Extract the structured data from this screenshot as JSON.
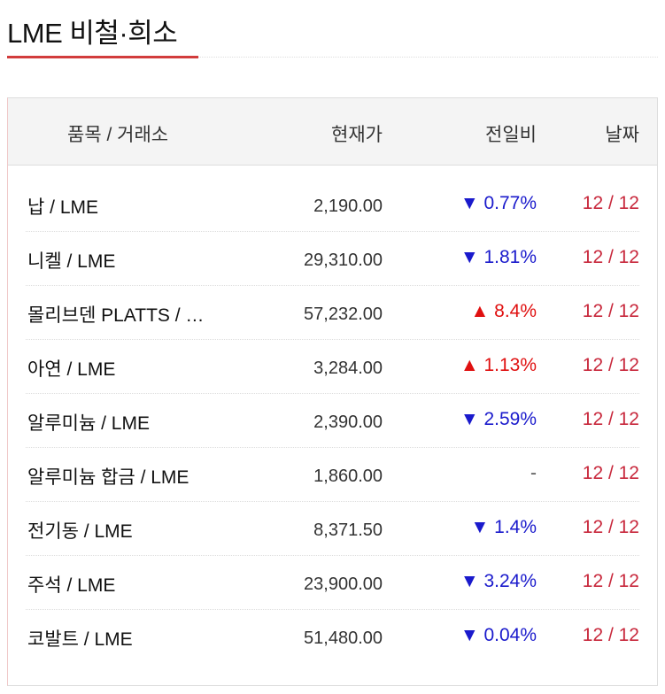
{
  "title": "LME 비철·희소",
  "colors": {
    "accent": "#d23c3c",
    "down": "#1a1acc",
    "up": "#e01010",
    "date": "#c8283c"
  },
  "headers": {
    "item": "품목 / 거래소",
    "price": "현재가",
    "change": "전일비",
    "date": "날짜"
  },
  "rows": [
    {
      "name": "납 / LME",
      "price": "2,190.00",
      "change": "▼ 0.77%",
      "dir": "down",
      "date": "12 / 12"
    },
    {
      "name": "니켈 / LME",
      "price": "29,310.00",
      "change": "▼ 1.81%",
      "dir": "down",
      "date": "12 / 12"
    },
    {
      "name": "몰리브덴 PLATTS / …",
      "price": "57,232.00",
      "change": "▲ 8.4%",
      "dir": "up",
      "date": "12 / 12"
    },
    {
      "name": "아연 / LME",
      "price": "3,284.00",
      "change": "▲ 1.13%",
      "dir": "up",
      "date": "12 / 12"
    },
    {
      "name": "알루미늄 / LME",
      "price": "2,390.00",
      "change": "▼ 2.59%",
      "dir": "down",
      "date": "12 / 12"
    },
    {
      "name": "알루미늄 합금 / LME",
      "price": "1,860.00",
      "change": "-",
      "dir": "flat",
      "date": "12 / 12"
    },
    {
      "name": "전기동 / LME",
      "price": "8,371.50",
      "change": "▼ 1.4%",
      "dir": "down",
      "date": "12 / 12"
    },
    {
      "name": "주석 / LME",
      "price": "23,900.00",
      "change": "▼ 3.24%",
      "dir": "down",
      "date": "12 / 12"
    },
    {
      "name": "코발트 / LME",
      "price": "51,480.00",
      "change": "▼ 0.04%",
      "dir": "down",
      "date": "12 / 12"
    }
  ]
}
